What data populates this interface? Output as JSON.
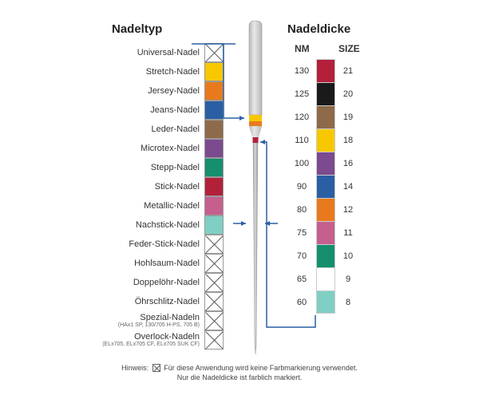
{
  "headers": {
    "type": "Nadeltyp",
    "thickness": "Nadeldicke",
    "nm": "NM",
    "size": "SIZE"
  },
  "needle_types": [
    {
      "label": "Universal-Nadel",
      "color": null,
      "cross": true
    },
    {
      "label": "Stretch-Nadel",
      "color": "#f7c800",
      "cross": false
    },
    {
      "label": "Jersey-Nadel",
      "color": "#e87a1d",
      "cross": false
    },
    {
      "label": "Jeans-Nadel",
      "color": "#2a5fa3",
      "cross": false
    },
    {
      "label": "Leder-Nadel",
      "color": "#8e6a4a",
      "cross": false
    },
    {
      "label": "Microtex-Nadel",
      "color": "#7b4a8f",
      "cross": false
    },
    {
      "label": "Stepp-Nadel",
      "color": "#158f6e",
      "cross": false
    },
    {
      "label": "Stick-Nadel",
      "color": "#b3203a",
      "cross": false
    },
    {
      "label": "Metallic-Nadel",
      "color": "#c45f8e",
      "cross": false
    },
    {
      "label": "Nachstick-Nadel",
      "color": "#7fcfc4",
      "cross": false
    },
    {
      "label": "Feder-Stick-Nadel",
      "color": null,
      "cross": true
    },
    {
      "label": "Hohlsaum-Nadel",
      "color": null,
      "cross": true
    },
    {
      "label": "Doppelöhr-Nadel",
      "color": null,
      "cross": true
    },
    {
      "label": "Öhrschlitz-Nadel",
      "color": null,
      "cross": true
    },
    {
      "label": "Spezial-Nadeln",
      "sublabel": "(HAx1 SP, 130/705 H-PS, 705 B)",
      "color": null,
      "cross": true
    },
    {
      "label": "Overlock-Nadeln",
      "sublabel": "(ELx705, ELx705 CF, ELx705 SUK CF)",
      "color": null,
      "cross": true
    }
  ],
  "needle_sizes": [
    {
      "nm": "130",
      "size": "21",
      "color": "#b3203a"
    },
    {
      "nm": "125",
      "size": "20",
      "color": "#1a1a1a"
    },
    {
      "nm": "120",
      "size": "19",
      "color": "#8e6a4a"
    },
    {
      "nm": "110",
      "size": "18",
      "color": "#f7c800"
    },
    {
      "nm": "100",
      "size": "16",
      "color": "#7b4a8f"
    },
    {
      "nm": "90",
      "size": "14",
      "color": "#2a5fa3"
    },
    {
      "nm": "80",
      "size": "12",
      "color": "#e87a1d"
    },
    {
      "nm": "75",
      "size": "11",
      "color": "#c45f8e"
    },
    {
      "nm": "70",
      "size": "10",
      "color": "#158f6e"
    },
    {
      "nm": "65",
      "size": "9",
      "color": "#ffffff"
    },
    {
      "nm": "60",
      "size": "8",
      "color": "#7fcfc4"
    }
  ],
  "needle_graphic": {
    "shank_color": "#b8b8b8",
    "shank_highlight": "#e8e8e8",
    "type_band_color": "#f7c800",
    "type_band2_color": "#e87a1d",
    "size_band_color": "#b3203a",
    "shaft_color": "#9a9a9a"
  },
  "connector_color": "#2a5fa3",
  "footnote": {
    "prefix": "Hinweis:",
    "line1": "Für diese Anwendung wird keine Farbmarkierung verwendet.",
    "line2": "Nur die Nadeldicke ist farblich markiert."
  }
}
